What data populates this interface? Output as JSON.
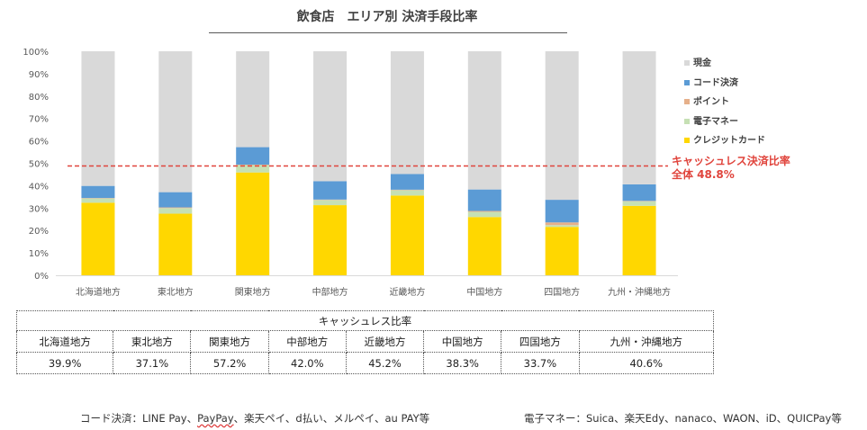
{
  "chart_data": {
    "type": "bar",
    "stacked": true,
    "title": "飲食店　エリア別 決済手段比率",
    "xlabel": "",
    "ylabel": "",
    "ylim": [
      0,
      100
    ],
    "yticks": [
      "0%",
      "10%",
      "20%",
      "30%",
      "40%",
      "50%",
      "60%",
      "70%",
      "80%",
      "90%",
      "100%"
    ],
    "grid": false,
    "legend_position": "right",
    "categories": [
      "北海道地方",
      "東北地方",
      "関東地方",
      "中部地方",
      "近畿地方",
      "中国地方",
      "四国地方",
      "九州・沖縄地方"
    ],
    "series": [
      {
        "name": "クレジットカード",
        "color": "#ffd700",
        "values": [
          32.4,
          27.5,
          45.9,
          31.3,
          35.6,
          26.0,
          21.6,
          31.0
        ]
      },
      {
        "name": "電子マネー",
        "color": "#c6e0b4",
        "values": [
          1.9,
          2.5,
          3.3,
          2.3,
          2.4,
          2.3,
          0.8,
          2.0
        ]
      },
      {
        "name": "ポイント",
        "color": "#e6b08a",
        "values": [
          0.2,
          0.3,
          0.2,
          0.2,
          0.2,
          0.4,
          1.2,
          0.2
        ]
      },
      {
        "name": "コード決済",
        "color": "#5b9bd5",
        "values": [
          5.4,
          6.8,
          7.8,
          8.2,
          7.0,
          9.6,
          10.1,
          7.4
        ]
      },
      {
        "name": "現金",
        "color": "#d9d9d9",
        "values": [
          60.1,
          62.9,
          42.8,
          58.0,
          54.8,
          61.7,
          66.3,
          59.4
        ]
      }
    ],
    "legend_order": [
      "現金",
      "コード決済",
      "ポイント",
      "電子マネー",
      "クレジットカード"
    ],
    "reference_line": {
      "value": 48.8,
      "color": "#e0443c",
      "style": "dashed",
      "label_line1": "キャッシュレス決済比率",
      "label_line2": "全体 48.8%"
    }
  },
  "table": {
    "header": "キャッシュレス比率",
    "regions": [
      "北海道地方",
      "東北地方",
      "関東地方",
      "中部地方",
      "近畿地方",
      "中国地方",
      "四国地方",
      "九州・沖縄地方"
    ],
    "values": [
      "39.9%",
      "37.1%",
      "57.2%",
      "42.0%",
      "45.2%",
      "38.3%",
      "33.7%",
      "40.6%"
    ]
  },
  "notes": {
    "code_prefix": "コード決済：LINE Pay、",
    "code_wavy": "PayPay",
    "code_suffix": "、楽天ペイ、d払い、メルペイ、au PAY等",
    "emoney": "電子マネー：Suica、楽天Edy、nanaco、WAON、iD、QUICPay等"
  }
}
